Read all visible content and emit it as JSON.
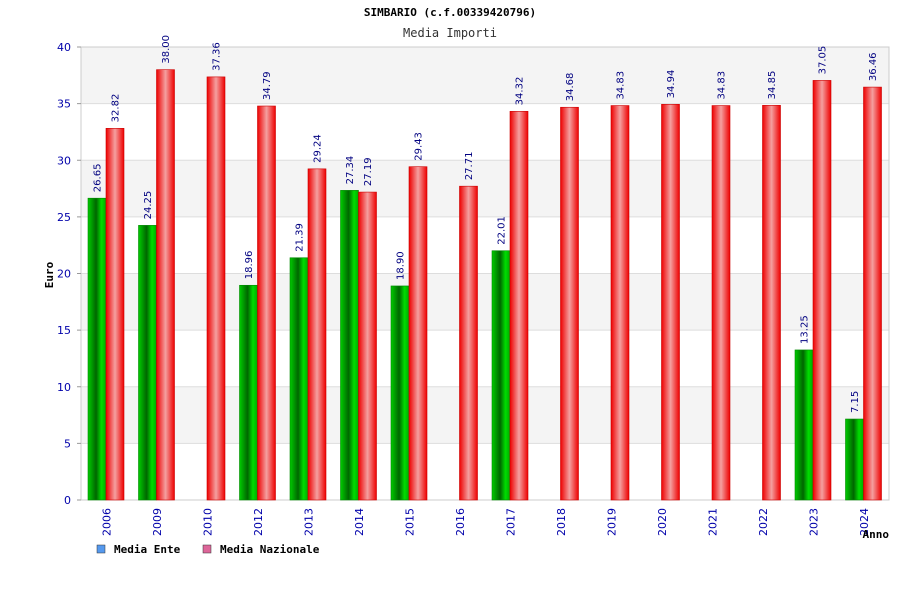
{
  "chart_data": {
    "type": "bar",
    "title": "SIMBARIO (c.f.00339420796)",
    "subtitle": "Media Importi",
    "ylabel": "Euro",
    "xlabel": "Anno",
    "ylim": [
      0,
      40
    ],
    "yticks": [
      0,
      5,
      10,
      15,
      20,
      25,
      30,
      35,
      40
    ],
    "categories": [
      "2006",
      "2009",
      "2010",
      "2012",
      "2013",
      "2014",
      "2015",
      "2016",
      "2017",
      "2018",
      "2019",
      "2020",
      "2021",
      "2022",
      "2023",
      "2024"
    ],
    "series": [
      {
        "name": "Media Ente",
        "color": "#00aa00",
        "legend_color": "#5599ee",
        "values": [
          26.65,
          24.25,
          null,
          18.96,
          21.39,
          27.34,
          18.9,
          null,
          22.01,
          null,
          null,
          null,
          null,
          null,
          13.25,
          7.15
        ],
        "labels": [
          "26.65",
          "24.25",
          "",
          "18.96",
          "21.39",
          "27.34",
          "18.90",
          "",
          "22.01",
          "",
          "",
          "",
          "",
          "",
          "13.25",
          "7.15"
        ]
      },
      {
        "name": "Media Nazionale",
        "color": "#ee1111",
        "legend_color": "#dd6699",
        "values": [
          32.82,
          38.0,
          37.36,
          34.79,
          29.24,
          27.19,
          29.43,
          27.71,
          34.32,
          34.68,
          34.83,
          34.94,
          34.83,
          34.85,
          37.05,
          36.46
        ],
        "labels": [
          "32.82",
          "38.00",
          "37.36",
          "34.79",
          "29.24",
          "27.19",
          "29.43",
          "27.71",
          "34.32",
          "34.68",
          "34.83",
          "34.94",
          "34.83",
          "34.85",
          "37.05",
          "36.46"
        ]
      }
    ],
    "grid": true,
    "legend_position": "bottom-left"
  }
}
